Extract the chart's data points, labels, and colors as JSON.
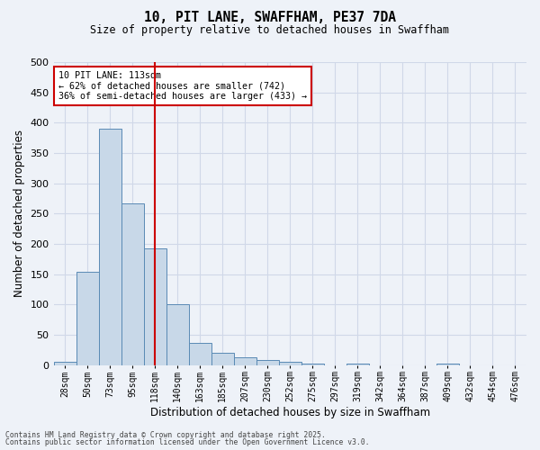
{
  "title1": "10, PIT LANE, SWAFFHAM, PE37 7DA",
  "title2": "Size of property relative to detached houses in Swaffham",
  "xlabel": "Distribution of detached houses by size in Swaffham",
  "ylabel": "Number of detached properties",
  "bar_values": [
    6,
    154,
    390,
    267,
    193,
    101,
    36,
    21,
    13,
    9,
    5,
    3,
    0,
    2,
    0,
    0,
    0,
    2,
    0,
    0,
    0
  ],
  "xlim_labels": [
    "28sqm",
    "50sqm",
    "73sqm",
    "95sqm",
    "118sqm",
    "140sqm",
    "163sqm",
    "185sqm",
    "207sqm",
    "230sqm",
    "252sqm",
    "275sqm",
    "297sqm",
    "319sqm",
    "342sqm",
    "364sqm",
    "387sqm",
    "409sqm",
    "432sqm",
    "454sqm",
    "476sqm"
  ],
  "bar_color": "#c8d8e8",
  "bar_edge_color": "#5a8ab5",
  "grid_color": "#d0d8e8",
  "background_color": "#eef2f8",
  "vline_x": 4,
  "vline_color": "#cc0000",
  "ylim": [
    0,
    500
  ],
  "yticks": [
    0,
    50,
    100,
    150,
    200,
    250,
    300,
    350,
    400,
    450,
    500
  ],
  "annotation_text": "10 PIT LANE: 113sqm\n← 62% of detached houses are smaller (742)\n36% of semi-detached houses are larger (433) →",
  "annotation_box_color": "#ffffff",
  "annotation_border_color": "#cc0000",
  "footer1": "Contains HM Land Registry data © Crown copyright and database right 2025.",
  "footer2": "Contains public sector information licensed under the Open Government Licence v3.0."
}
